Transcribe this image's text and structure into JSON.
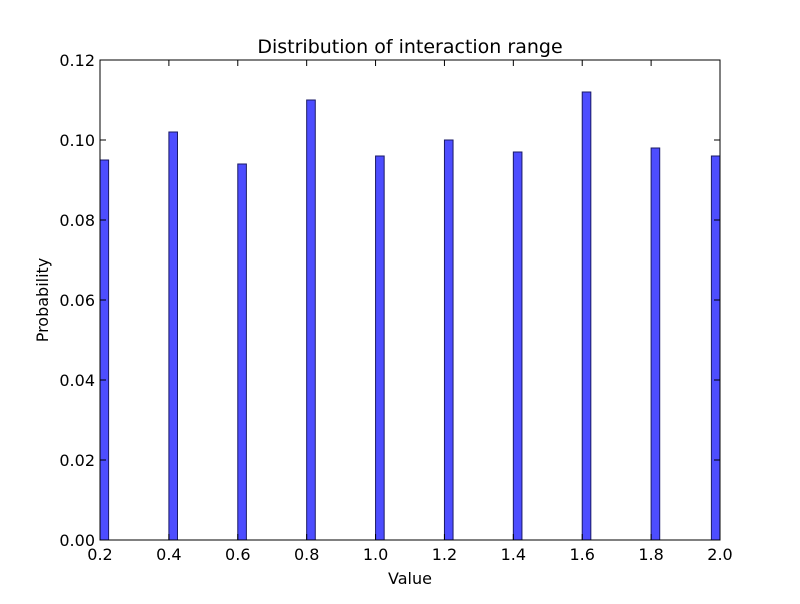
{
  "chart_data": {
    "type": "bar",
    "title": "Distribution of interaction range",
    "xlabel": "Value",
    "ylabel": "Probability",
    "x": [
      0.2,
      0.4,
      0.6,
      0.8,
      1.0,
      1.2,
      1.4,
      1.6,
      1.8,
      2.0
    ],
    "values": [
      0.095,
      0.102,
      0.094,
      0.11,
      0.096,
      0.1,
      0.097,
      0.112,
      0.098,
      0.096
    ],
    "xlim": [
      0.2,
      2.0
    ],
    "ylim": [
      0.0,
      0.12
    ],
    "xticks": [
      "0.2",
      "0.4",
      "0.6",
      "0.8",
      "1.0",
      "1.2",
      "1.4",
      "1.6",
      "1.8",
      "2.0"
    ],
    "yticks": [
      "0.00",
      "0.02",
      "0.04",
      "0.06",
      "0.08",
      "0.10",
      "0.12"
    ],
    "grid": false,
    "colors": {
      "bar_fill": "#4d4dff",
      "bar_edge": "#1a1a66",
      "axes": "#000000",
      "background": "#ffffff"
    }
  }
}
